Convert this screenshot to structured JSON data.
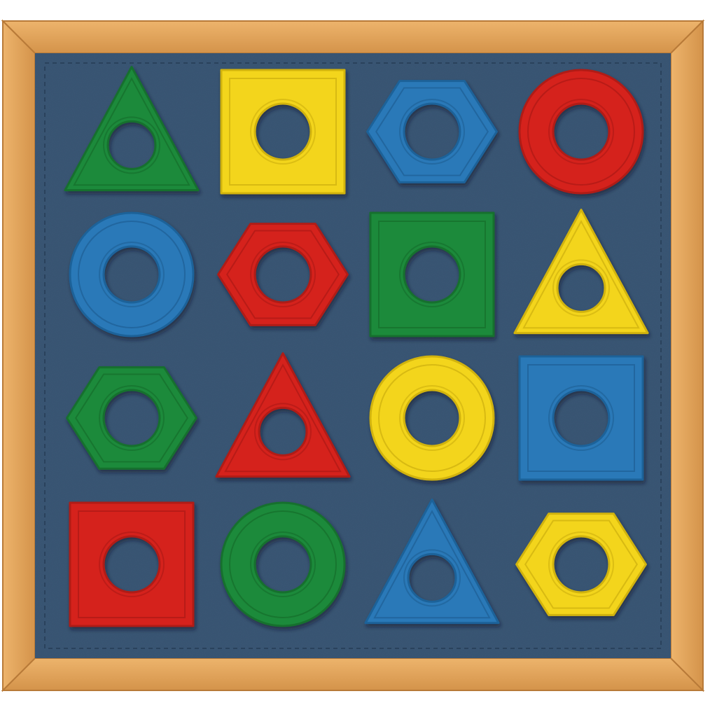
{
  "board": {
    "frame_color": "#E3A55E",
    "frame_dark": "#B87A38",
    "felt_color": "#3A5675",
    "hole_color": "#324C69",
    "columns": 4,
    "rows": 4
  },
  "palette": {
    "green": {
      "fill": "#1F8A3A",
      "edge": "#16702D"
    },
    "yellow": {
      "fill": "#F3D51C",
      "edge": "#D1B310"
    },
    "blue": {
      "fill": "#2A79B8",
      "edge": "#1F6299"
    },
    "red": {
      "fill": "#D5231F",
      "edge": "#B01A17"
    }
  },
  "pieces": [
    [
      {
        "shape": "triangle",
        "color": "green"
      },
      {
        "shape": "square",
        "color": "yellow"
      },
      {
        "shape": "hexagon",
        "color": "blue"
      },
      {
        "shape": "circle",
        "color": "red"
      }
    ],
    [
      {
        "shape": "circle",
        "color": "blue"
      },
      {
        "shape": "hexagon",
        "color": "red"
      },
      {
        "shape": "square",
        "color": "green"
      },
      {
        "shape": "triangle",
        "color": "yellow"
      }
    ],
    [
      {
        "shape": "hexagon",
        "color": "green"
      },
      {
        "shape": "triangle",
        "color": "red"
      },
      {
        "shape": "circle",
        "color": "yellow"
      },
      {
        "shape": "square",
        "color": "blue"
      }
    ],
    [
      {
        "shape": "square",
        "color": "red"
      },
      {
        "shape": "circle",
        "color": "green"
      },
      {
        "shape": "triangle",
        "color": "blue"
      },
      {
        "shape": "hexagon",
        "color": "yellow"
      }
    ]
  ]
}
